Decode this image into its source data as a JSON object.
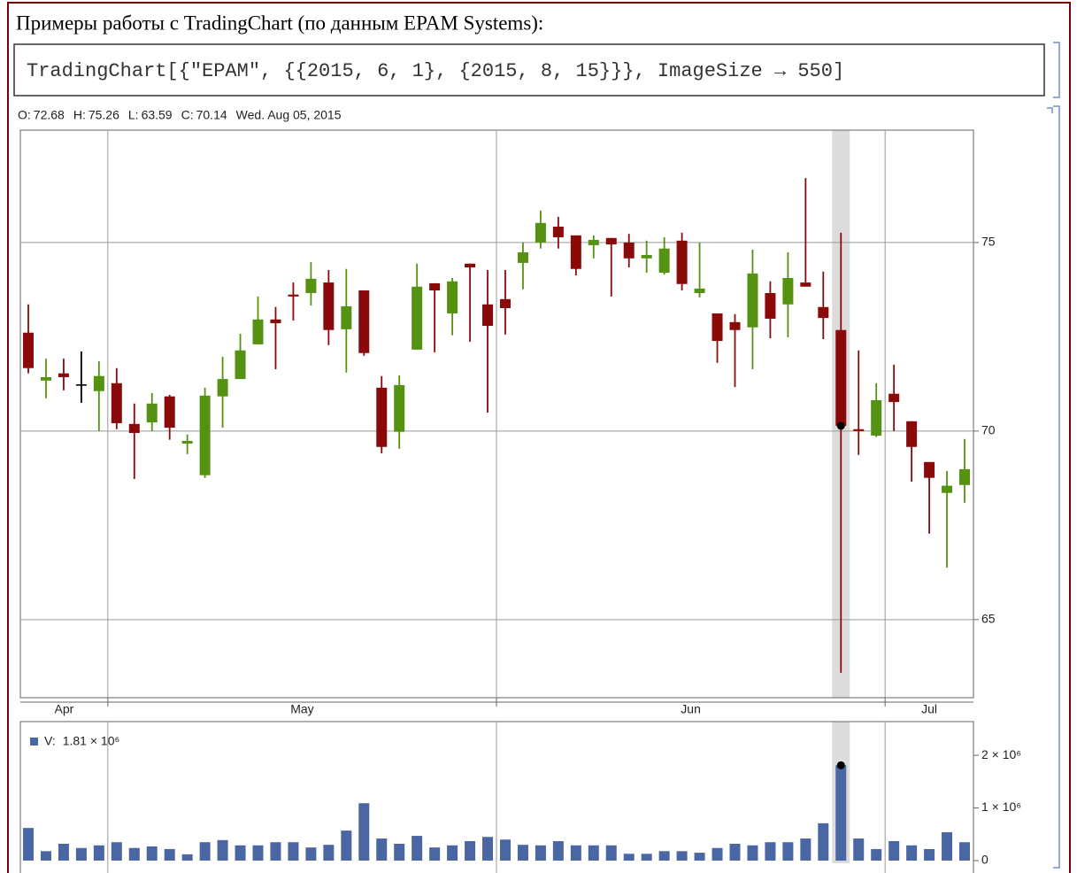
{
  "header": {
    "title": "Примеры работы с TradingChart (по данным EPAM Systems):"
  },
  "input": {
    "code": "TradingChart[{\"EPAM\", {{2015, 6, 1}, {2015, 8, 15}}}, ImageSize → 550]"
  },
  "chart_data": [
    {
      "type": "candlestick",
      "readout": [
        {
          "label": "O:",
          "value": 72.68
        },
        {
          "label": "H:",
          "value": 75.26
        },
        {
          "label": "L:",
          "value": 63.59
        },
        {
          "label": "C:",
          "value": 70.14
        }
      ],
      "date": "Wed. Aug 05, 2015",
      "open": [
        72.61,
        71.34,
        71.53,
        71.24,
        71.06,
        71.27,
        70.19,
        70.23,
        70.92,
        69.67,
        68.83,
        70.92,
        71.38,
        72.3,
        72.96,
        73.62,
        73.66,
        73.94,
        72.7,
        73.73,
        71.15,
        69.98,
        72.16,
        73.92,
        73.12,
        74.44,
        73.36,
        73.5,
        74.46,
        75.0,
        75.42,
        75.19,
        74.93,
        75.12,
        75.0,
        74.58,
        74.2,
        75.05,
        73.66,
        73.12,
        72.89,
        72.75,
        73.66,
        73.36,
        73.94,
        73.29,
        72.68,
        70.05,
        69.88,
        70.99,
        70.26,
        69.18,
        68.36,
        68.57
      ],
      "high": [
        73.36,
        71.92,
        71.92,
        72.11,
        71.85,
        71.67,
        70.73,
        71.01,
        70.96,
        69.91,
        71.15,
        71.97,
        72.58,
        73.57,
        73.29,
        73.94,
        74.48,
        74.27,
        74.3,
        73.73,
        71.46,
        71.48,
        74.44,
        73.92,
        74.06,
        74.44,
        74.27,
        74.27,
        75.0,
        75.85,
        75.68,
        75.19,
        75.19,
        75.12,
        75.23,
        75.05,
        75.14,
        75.26,
        75.0,
        73.12,
        73.1,
        74.81,
        73.97,
        74.74,
        76.71,
        74.23,
        75.26,
        72.14,
        71.27,
        71.76,
        70.26,
        69.18,
        68.94,
        69.79
      ],
      "low": [
        71.53,
        70.87,
        71.08,
        70.75,
        70.0,
        70.05,
        68.73,
        70.0,
        69.77,
        69.39,
        68.76,
        70.09,
        71.38,
        72.3,
        71.64,
        72.93,
        73.33,
        72.28,
        71.55,
        72.0,
        69.41,
        69.53,
        72.16,
        72.09,
        72.54,
        72.37,
        70.49,
        72.56,
        73.76,
        74.84,
        74.84,
        74.13,
        74.58,
        73.57,
        74.34,
        74.2,
        74.15,
        73.73,
        73.54,
        71.81,
        71.17,
        71.64,
        72.46,
        72.49,
        73.83,
        72.44,
        63.59,
        69.37,
        69.84,
        70.0,
        68.66,
        67.28,
        66.38,
        68.1
      ],
      "close": [
        71.67,
        71.43,
        71.43,
        71.24,
        71.46,
        70.21,
        69.95,
        70.73,
        70.09,
        69.74,
        70.94,
        71.38,
        72.14,
        72.96,
        72.86,
        73.57,
        74.04,
        72.68,
        73.31,
        72.07,
        69.58,
        71.22,
        73.83,
        73.73,
        73.97,
        74.34,
        72.79,
        73.26,
        74.74,
        75.52,
        75.14,
        74.3,
        75.07,
        74.95,
        74.58,
        74.67,
        74.84,
        73.9,
        73.78,
        72.39,
        72.68,
        74.18,
        72.98,
        74.06,
        73.83,
        73.0,
        70.14,
        70.0,
        70.82,
        70.77,
        69.58,
        68.76,
        68.55,
        68.99
      ],
      "up_color": "#559212",
      "down_color": "#8a0a0a",
      "flat_color": "#000000",
      "ylim": [
        62.93,
        77.98
      ],
      "yticks": [
        65,
        70,
        75
      ],
      "x_labels": [
        "Apr",
        "May",
        "Jun",
        "Jul"
      ],
      "grid": true
    },
    {
      "type": "bar",
      "legend": {
        "label": "V:",
        "value_label": "1.81 × 10⁶"
      },
      "values": [
        620000,
        180000,
        320000,
        240000,
        290000,
        350000,
        240000,
        270000,
        220000,
        120000,
        350000,
        390000,
        290000,
        290000,
        350000,
        350000,
        250000,
        300000,
        570000,
        1090000,
        420000,
        320000,
        470000,
        250000,
        290000,
        370000,
        450000,
        400000,
        300000,
        290000,
        370000,
        290000,
        290000,
        290000,
        130000,
        130000,
        180000,
        180000,
        150000,
        240000,
        320000,
        290000,
        350000,
        350000,
        420000,
        710000,
        1810000,
        420000,
        220000,
        370000,
        290000,
        220000,
        540000,
        350000
      ],
      "color": "#4a67a3",
      "ylim": [
        -50000,
        2640000
      ],
      "yticks": [
        0,
        {
          "value": 1000000,
          "label": "1 × 10⁶"
        },
        {
          "value": 2000000,
          "label": "2 × 10⁶"
        }
      ],
      "grid": true
    }
  ]
}
